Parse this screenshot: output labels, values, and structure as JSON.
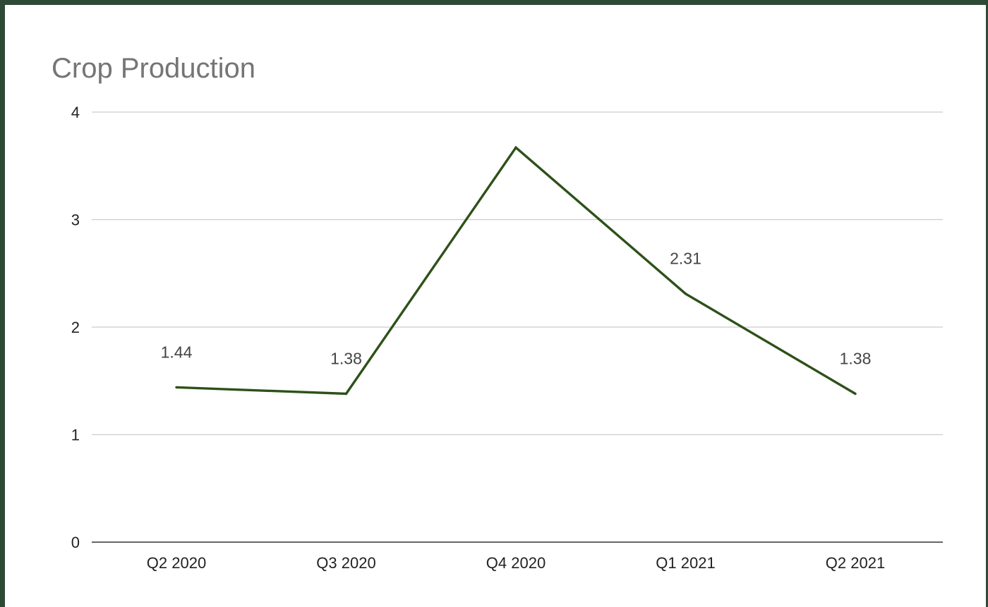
{
  "chart_data": {
    "type": "line",
    "title": "Crop Production",
    "xlabel": "",
    "ylabel": "",
    "categories": [
      "Q2 2020",
      "Q3 2020",
      "Q4 2020",
      "Q1 2021",
      "Q2 2021"
    ],
    "series": [
      {
        "values": [
          1.44,
          1.38,
          3.67,
          2.31,
          1.38
        ],
        "data_labels": [
          "1.44",
          "1.38",
          "",
          "2.31",
          "1.38"
        ],
        "color": "#2d5119"
      }
    ],
    "ylim": [
      0,
      4
    ],
    "yticks": [
      0,
      1,
      2,
      3,
      4
    ],
    "grid": true,
    "legend": "none"
  },
  "colors": {
    "frame": "#2e4a36",
    "line": "#2d5119",
    "title": "#757575"
  }
}
